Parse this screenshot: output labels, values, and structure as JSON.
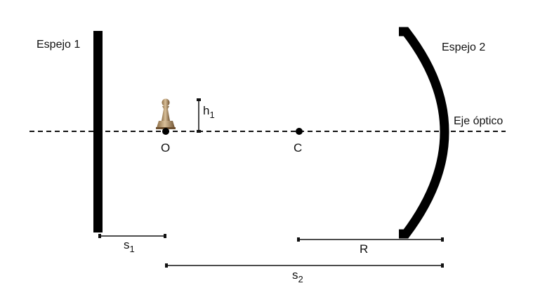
{
  "labels": {
    "mirror1": "Espejo 1",
    "mirror2": "Espejo 2",
    "optical_axis": "Eje óptico",
    "object_point": "O",
    "center_point": "C",
    "height_symbol": "h",
    "height_subscript": "1",
    "s1_symbol": "s",
    "s1_subscript": "1",
    "s2_symbol": "s",
    "s2_subscript": "2",
    "radius": "R"
  },
  "object": {
    "icon": "chess-pawn-icon"
  },
  "colors": {
    "ink": "#111111",
    "pawn_light": "#c9ad85",
    "pawn_dark": "#7a5c38"
  }
}
